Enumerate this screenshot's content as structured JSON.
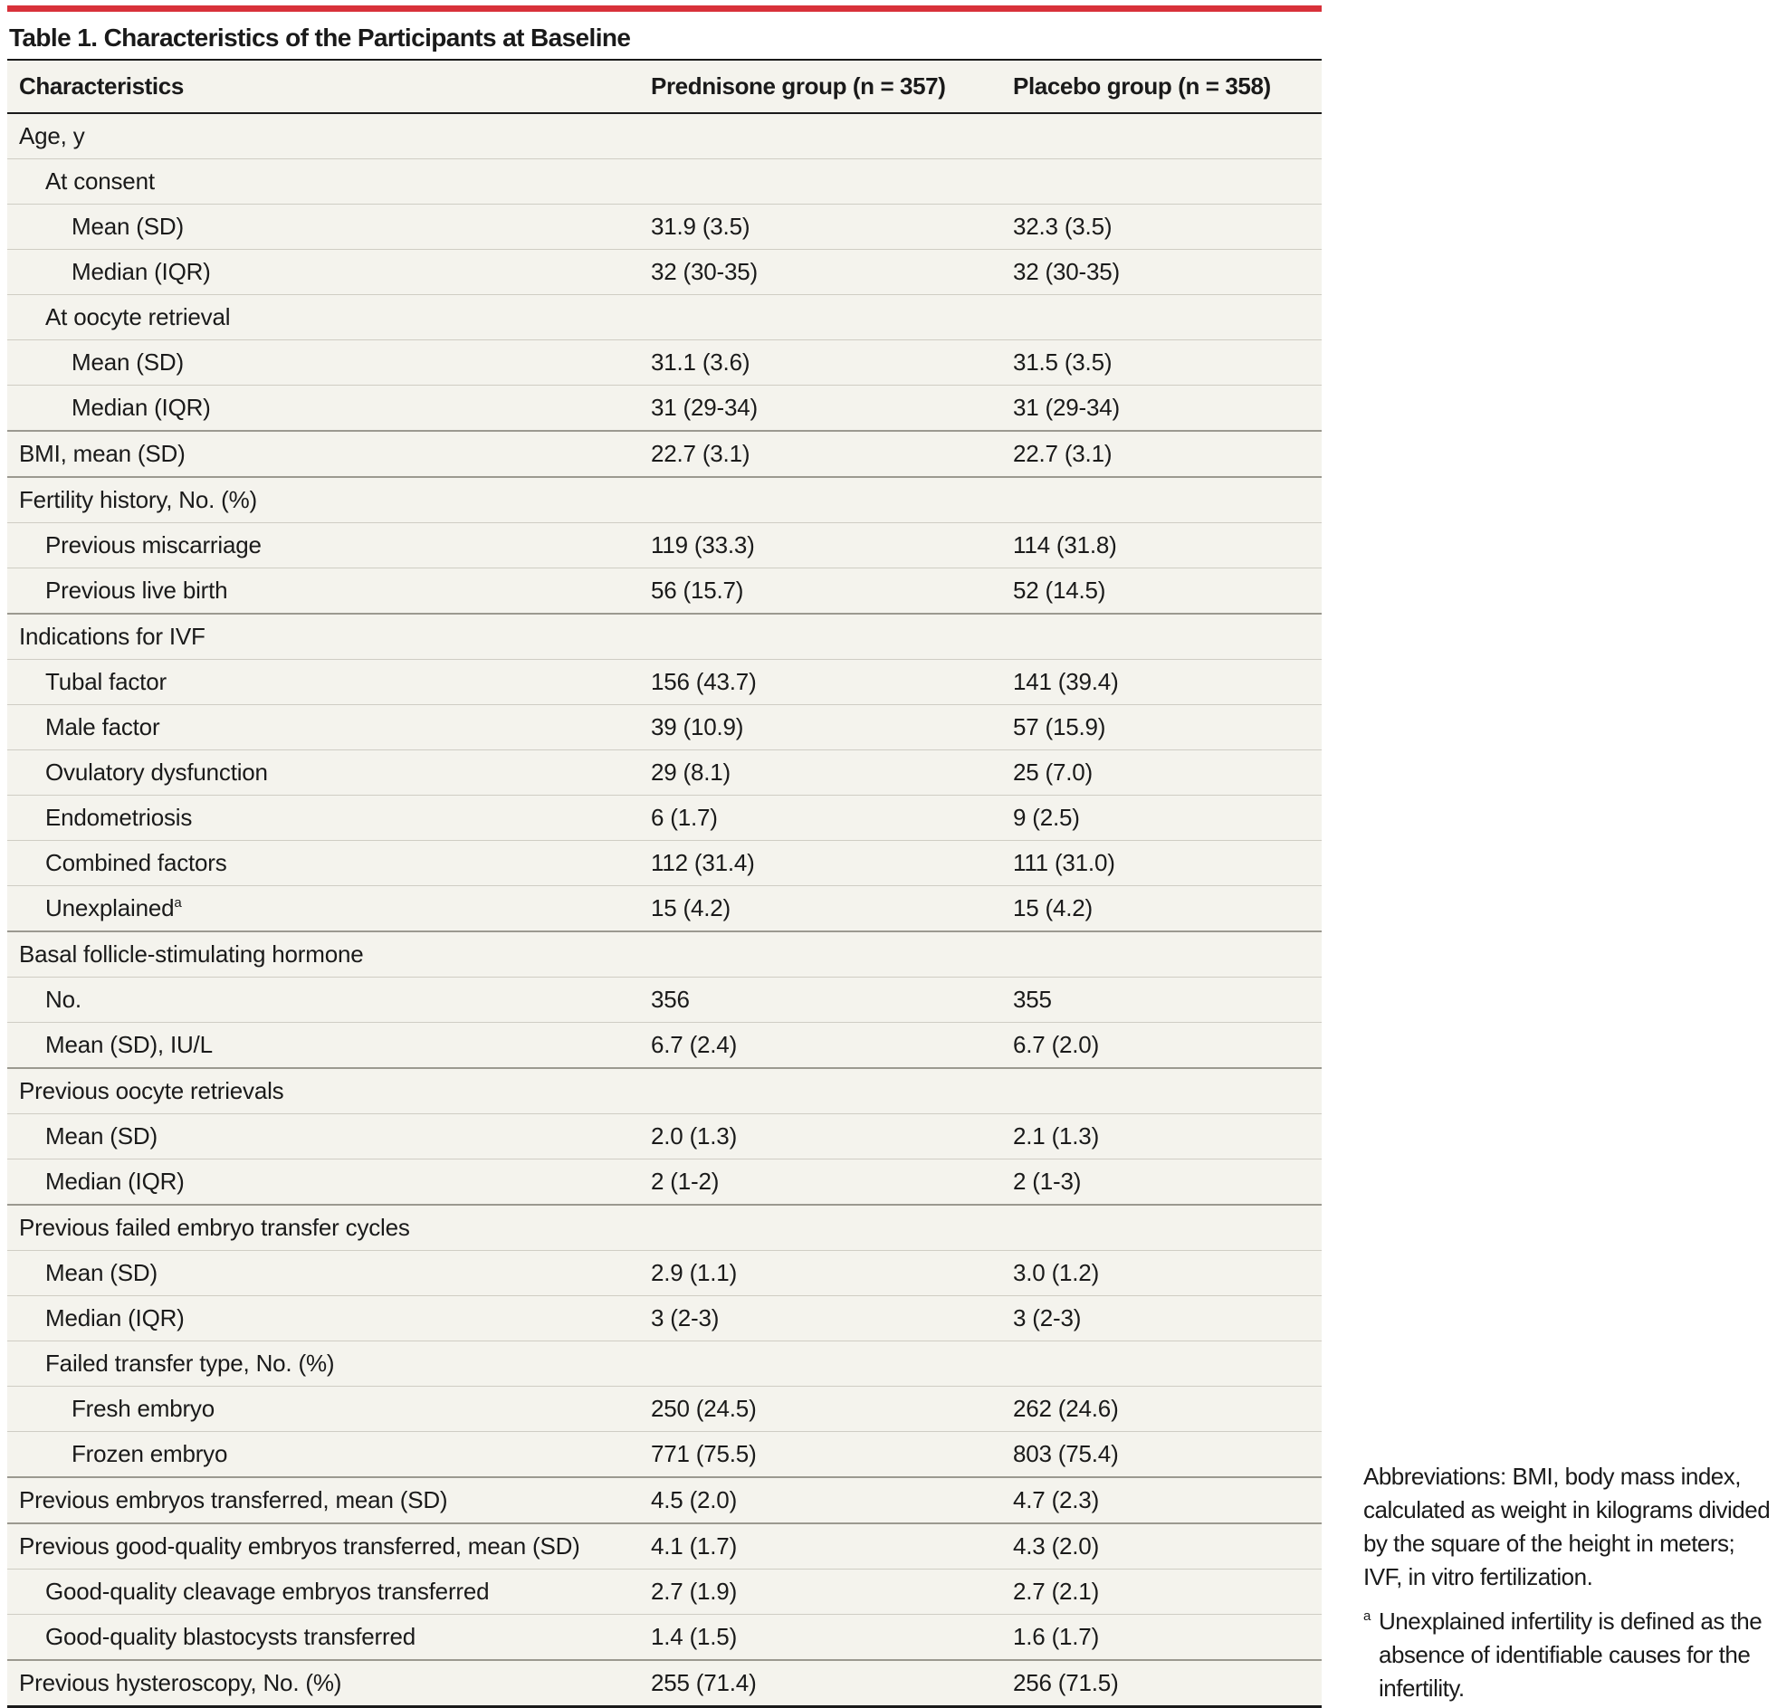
{
  "table": {
    "title": "Table 1. Characteristics of the Participants at Baseline",
    "headers": {
      "characteristics": "Characteristics",
      "prednisone": "Prednisone group (n = 357)",
      "placebo": "Placebo group (n = 358)"
    },
    "rows": [
      {
        "label": "Age, y",
        "a": "",
        "b": ""
      },
      {
        "label": "At consent",
        "a": "",
        "b": ""
      },
      {
        "label": "Mean (SD)",
        "a": "31.9 (3.5)",
        "b": "32.3 (3.5)"
      },
      {
        "label": "Median (IQR)",
        "a": "32 (30-35)",
        "b": "32 (30-35)"
      },
      {
        "label": "At oocyte retrieval",
        "a": "",
        "b": ""
      },
      {
        "label": "Mean (SD)",
        "a": "31.1 (3.6)",
        "b": "31.5 (3.5)"
      },
      {
        "label": "Median (IQR)",
        "a": "31 (29-34)",
        "b": "31 (29-34)"
      },
      {
        "label": "BMI, mean (SD)",
        "a": "22.7 (3.1)",
        "b": "22.7 (3.1)"
      },
      {
        "label": "Fertility history, No. (%)",
        "a": "",
        "b": ""
      },
      {
        "label": "Previous miscarriage",
        "a": "119 (33.3)",
        "b": "114 (31.8)"
      },
      {
        "label": "Previous live birth",
        "a": "56 (15.7)",
        "b": "52 (14.5)"
      },
      {
        "label": "Indications for IVF",
        "a": "",
        "b": ""
      },
      {
        "label": "Tubal factor",
        "a": "156 (43.7)",
        "b": "141 (39.4)"
      },
      {
        "label": "Male factor",
        "a": "39 (10.9)",
        "b": "57 (15.9)"
      },
      {
        "label": "Ovulatory dysfunction",
        "a": "29 (8.1)",
        "b": "25 (7.0)"
      },
      {
        "label": "Endometriosis",
        "a": "6 (1.7)",
        "b": "9 (2.5)"
      },
      {
        "label": "Combined factors",
        "a": "112 (31.4)",
        "b": "111 (31.0)"
      },
      {
        "label": "Unexplained",
        "sup": "a",
        "a": "15 (4.2)",
        "b": "15 (4.2)"
      },
      {
        "label": "Basal follicle-stimulating hormone",
        "a": "",
        "b": ""
      },
      {
        "label": "No.",
        "a": "356",
        "b": "355"
      },
      {
        "label": "Mean (SD), IU/L",
        "a": "6.7 (2.4)",
        "b": "6.7 (2.0)"
      },
      {
        "label": "Previous oocyte retrievals",
        "a": "",
        "b": ""
      },
      {
        "label": "Mean (SD)",
        "a": "2.0 (1.3)",
        "b": "2.1 (1.3)"
      },
      {
        "label": "Median (IQR)",
        "a": "2 (1-2)",
        "b": "2 (1-3)"
      },
      {
        "label": "Previous failed embryo transfer cycles",
        "a": "",
        "b": ""
      },
      {
        "label": "Mean (SD)",
        "a": "2.9 (1.1)",
        "b": "3.0 (1.2)"
      },
      {
        "label": "Median (IQR)",
        "a": "3 (2-3)",
        "b": "3 (2-3)"
      },
      {
        "label": "Failed transfer type, No. (%)",
        "a": "",
        "b": ""
      },
      {
        "label": "Fresh embryo",
        "a": "250 (24.5)",
        "b": "262 (24.6)"
      },
      {
        "label": "Frozen embryo",
        "a": "771 (75.5)",
        "b": "803 (75.4)"
      },
      {
        "label": "Previous embryos transferred, mean (SD)",
        "a": "4.5 (2.0)",
        "b": "4.7 (2.3)"
      },
      {
        "label": "Previous good-quality embryos transferred, mean (SD)",
        "a": "4.1 (1.7)",
        "b": "4.3 (2.0)"
      },
      {
        "label": "Good-quality cleavage embryos transferred",
        "a": "2.7 (1.9)",
        "b": "2.7 (2.1)"
      },
      {
        "label": "Good-quality blastocysts transferred",
        "a": "1.4 (1.5)",
        "b": "1.6 (1.7)"
      },
      {
        "label": "Previous hysteroscopy, No. (%)",
        "a": "255 (71.4)",
        "b": "256 (71.5)"
      }
    ]
  },
  "notes": {
    "abbreviations": "Abbreviations: BMI, body mass index, calculated as weight in kilograms divided by the square of the height in meters; IVF, in vitro fertilization.",
    "footnote_mark": "a",
    "footnote": "Unexplained infertility is defined as the absence of identifiable causes for the infertility."
  }
}
